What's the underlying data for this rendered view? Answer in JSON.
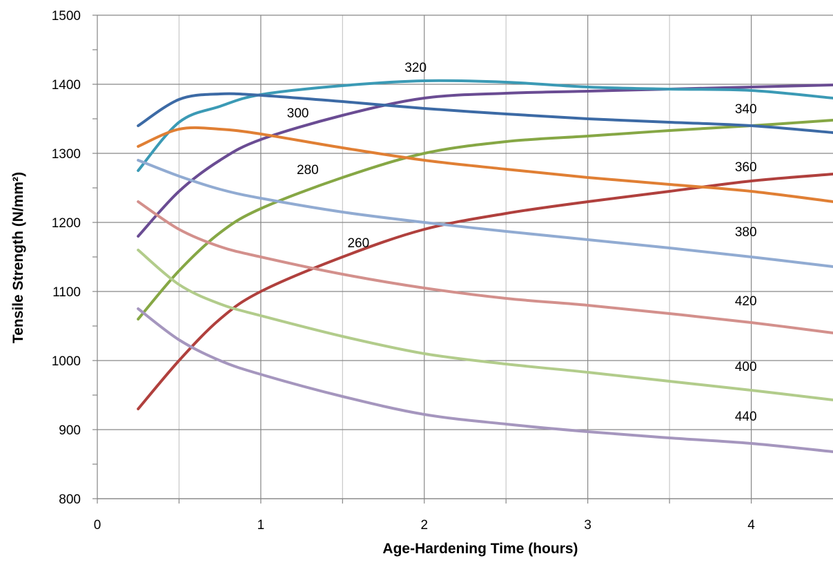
{
  "chart_data": {
    "type": "line",
    "title": "",
    "xlabel": "Age-Hardening Time (hours)",
    "ylabel": "Tensile Strength (N/mm²)",
    "xlim": [
      0,
      4.5
    ],
    "ylim": [
      800,
      1500
    ],
    "x_ticks": [
      0,
      1,
      2,
      3,
      4
    ],
    "x_tick_labels": [
      "0",
      "1",
      "2",
      "3",
      "4"
    ],
    "x_minor_grid": [
      0.5,
      1.5,
      2.5,
      3.5
    ],
    "y_ticks": [
      800,
      900,
      1000,
      1100,
      1200,
      1300,
      1400,
      1500
    ],
    "y_tick_labels": [
      "800",
      "900",
      "1000",
      "1100",
      "1200",
      "1300",
      "1400",
      "1500"
    ],
    "grid": true,
    "legend": "none",
    "x": [
      0.25,
      0.5,
      0.75,
      1,
      1.5,
      2,
      2.5,
      3,
      3.5,
      4,
      4.5
    ],
    "series": [
      {
        "name": "260",
        "color": "#b0403d",
        "values": [
          930,
          1000,
          1060,
          1100,
          1150,
          1190,
          1213,
          1230,
          1245,
          1260,
          1270
        ],
        "label_at": [
          1.53,
          1164
        ]
      },
      {
        "name": "280",
        "color": "#86a745",
        "values": [
          1060,
          1130,
          1185,
          1220,
          1265,
          1300,
          1317,
          1325,
          1333,
          1340,
          1348
        ],
        "label_at": [
          1.22,
          1270
        ]
      },
      {
        "name": "300",
        "color": "#6a4c93",
        "values": [
          1180,
          1245,
          1290,
          1320,
          1355,
          1380,
          1387,
          1390,
          1393,
          1396,
          1399
        ],
        "label_at": [
          1.16,
          1352
        ]
      },
      {
        "name": "320",
        "color": "#3b9ab5",
        "values": [
          1275,
          1345,
          1368,
          1385,
          1398,
          1405,
          1403,
          1396,
          1393,
          1391,
          1380
        ],
        "label_at": [
          1.88,
          1418
        ]
      },
      {
        "name": "340",
        "color": "#3c6aa5",
        "values": [
          1340,
          1378,
          1386,
          1384,
          1375,
          1365,
          1357,
          1350,
          1345,
          1340,
          1330
        ],
        "label_at": [
          3.9,
          1358
        ]
      },
      {
        "name": "360",
        "color": "#e07f34",
        "values": [
          1310,
          1335,
          1335,
          1328,
          1308,
          1290,
          1277,
          1265,
          1255,
          1245,
          1230
        ],
        "label_at": [
          3.9,
          1274
        ]
      },
      {
        "name": "380",
        "color": "#91abd2",
        "values": [
          1290,
          1267,
          1248,
          1235,
          1215,
          1200,
          1187,
          1175,
          1163,
          1150,
          1136
        ],
        "label_at": [
          3.9,
          1180
        ]
      },
      {
        "name": "420",
        "color": "#d3908c",
        "values": [
          1230,
          1190,
          1165,
          1150,
          1125,
          1105,
          1090,
          1080,
          1068,
          1055,
          1040
        ],
        "label_at": [
          3.9,
          1080
        ]
      },
      {
        "name": "400",
        "color": "#b2cc8b",
        "values": [
          1160,
          1110,
          1082,
          1065,
          1035,
          1010,
          995,
          983,
          970,
          957,
          943
        ],
        "label_at": [
          3.9,
          985
        ]
      },
      {
        "name": "440",
        "color": "#a596be",
        "values": [
          1075,
          1030,
          1000,
          980,
          948,
          922,
          908,
          897,
          888,
          880,
          868
        ],
        "label_at": [
          3.9,
          913
        ]
      }
    ]
  }
}
